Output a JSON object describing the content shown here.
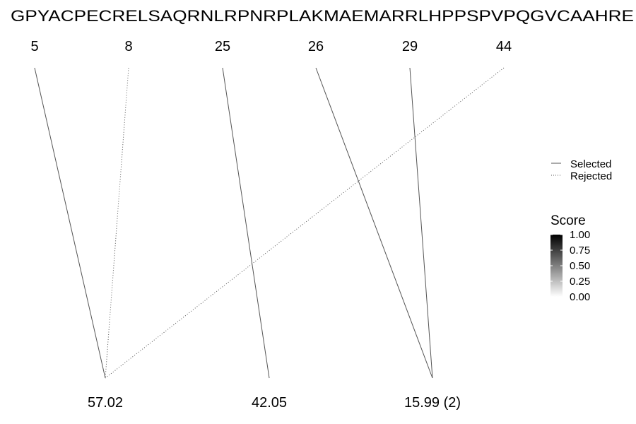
{
  "sequence": "GPYACPECRELSAQRNLRPNRPLAKMAEMARRLHPPSPVPQGVCAAHRE",
  "positions": [
    "5",
    "8",
    "25",
    "26",
    "29",
    "44"
  ],
  "masses": [
    "57.02",
    "42.05",
    "15.99 (2)"
  ],
  "links": [
    {
      "from": "5",
      "to": "57.02",
      "status": "Selected"
    },
    {
      "from": "8",
      "to": "57.02",
      "status": "Rejected"
    },
    {
      "from": "44",
      "to": "57.02",
      "status": "Rejected"
    },
    {
      "from": "25",
      "to": "42.05",
      "status": "Selected"
    },
    {
      "from": "26",
      "to": "15.99 (2)",
      "status": "Selected"
    },
    {
      "from": "29",
      "to": "15.99 (2)",
      "status": "Selected"
    }
  ],
  "legend_linetype": {
    "selected_label": "Selected",
    "rejected_label": "Rejected"
  },
  "legend_score": {
    "title": "Score",
    "ticks": [
      "1.00",
      "0.75",
      "0.50",
      "0.25",
      "0.00"
    ],
    "color_high": "#000000",
    "color_low": "#ffffff"
  },
  "colors": {
    "line": "#555555"
  }
}
